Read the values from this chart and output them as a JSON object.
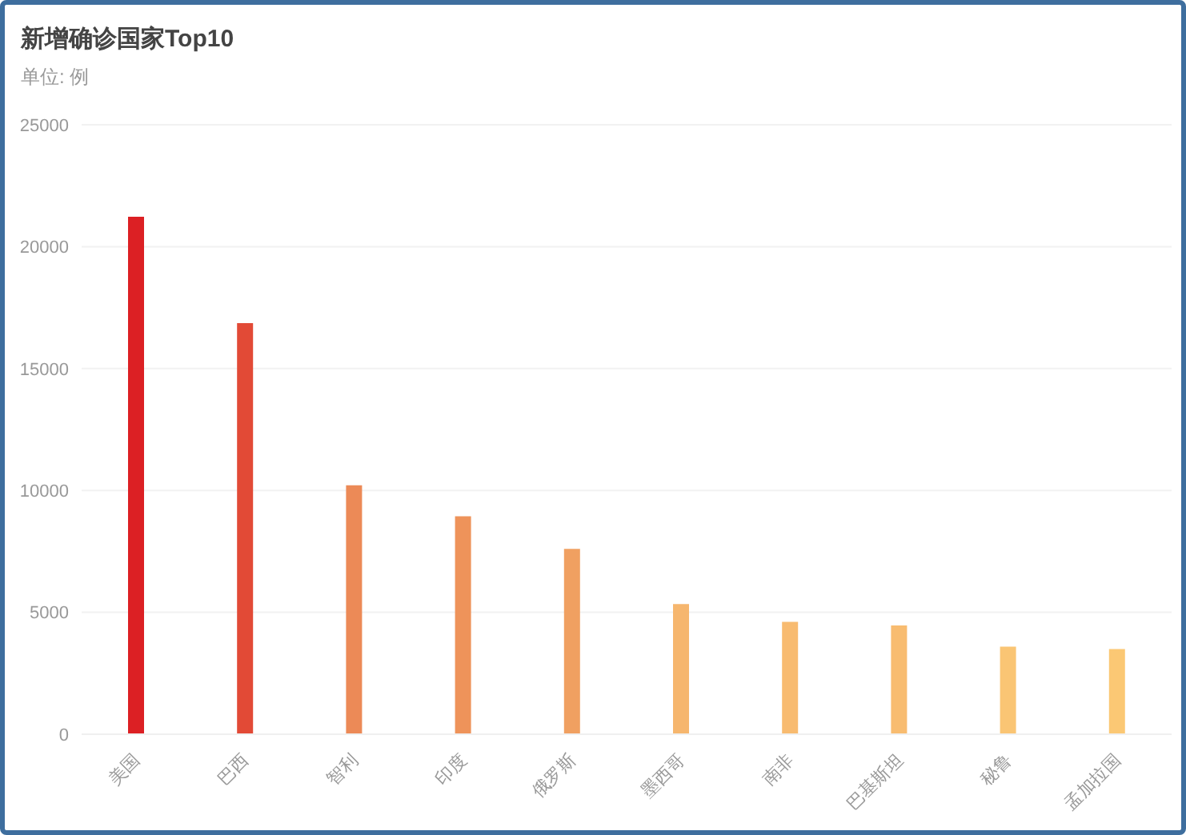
{
  "chart_data": {
    "type": "bar",
    "title": "新增确诊国家Top10",
    "subtitle": "单位: 例",
    "categories": [
      "美国",
      "巴西",
      "智利",
      "印度",
      "俄罗斯",
      "墨西哥",
      "南非",
      "巴基斯坦",
      "秘鲁",
      "孟加拉国"
    ],
    "values": [
      21230,
      16860,
      10210,
      8940,
      7600,
      5340,
      4610,
      4460,
      3590,
      3490
    ],
    "colors": [
      "#dc2024",
      "#e24a36",
      "#ec8a57",
      "#ee935a",
      "#f0a061",
      "#f6b66e",
      "#f8bb70",
      "#f8bc70",
      "#fac574",
      "#fbc874"
    ],
    "ylim": [
      0,
      25000
    ],
    "yticks": [
      0,
      5000,
      10000,
      15000,
      20000,
      25000
    ],
    "grid": "y"
  }
}
